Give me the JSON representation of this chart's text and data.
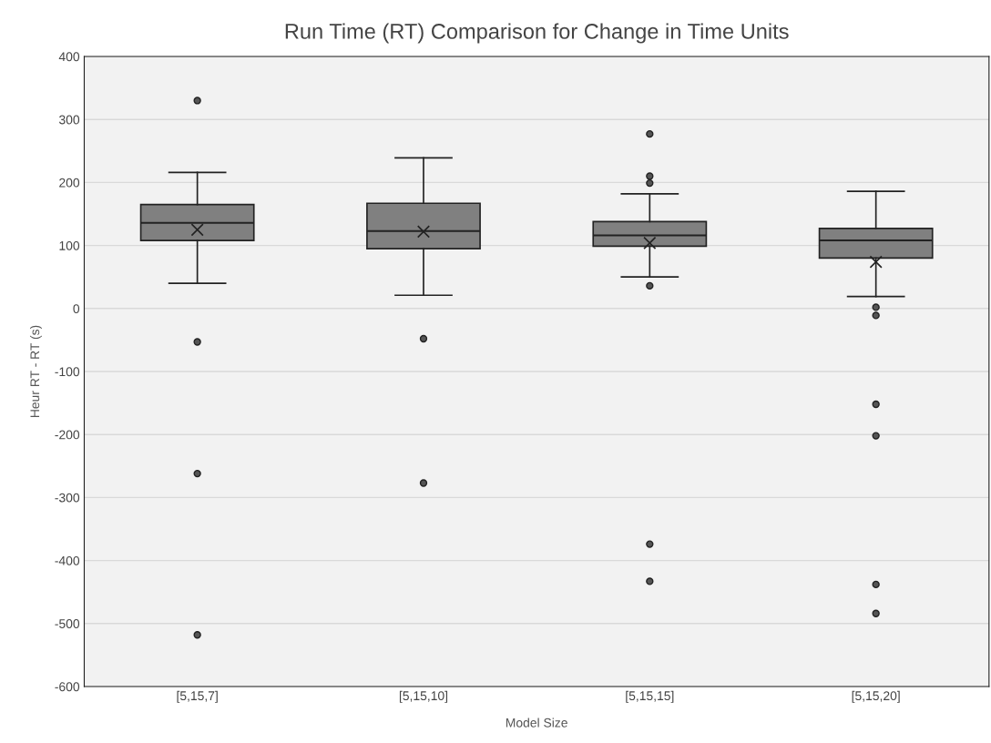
{
  "chart_data": {
    "type": "box",
    "title": "Run Time (RT) Comparison for Change in Time Units",
    "xlabel": "Model Size",
    "ylabel": "Heur RT - RT (s)",
    "categories": [
      "[5,15,7]",
      "[5,15,10]",
      "[5,15,15]",
      "[5,15,20]"
    ],
    "series": [
      {
        "color": "#808080",
        "boxes": [
          {
            "low": 40,
            "q1": 108,
            "median": 136,
            "q3": 165,
            "high": 216,
            "mean": 125,
            "outliers": [
              330,
              -53,
              -262,
              -518
            ]
          },
          {
            "low": 21,
            "q1": 95,
            "median": 123,
            "q3": 167,
            "high": 239,
            "mean": 122,
            "outliers": [
              -48,
              -277
            ]
          },
          {
            "low": 50,
            "q1": 99,
            "median": 116,
            "q3": 138,
            "high": 182,
            "mean": 104,
            "outliers": [
              277,
              210,
              199,
              36,
              -374,
              -433
            ]
          },
          {
            "low": 19,
            "q1": 80,
            "median": 108,
            "q3": 127,
            "high": 186,
            "mean": 74,
            "outliers": [
              2,
              -11,
              -152,
              -202,
              -438,
              -484
            ]
          }
        ]
      }
    ],
    "ylim": [
      -600,
      400
    ],
    "yticks": [
      -600,
      -500,
      -400,
      -300,
      -200,
      -100,
      0,
      100,
      200,
      300,
      400
    ],
    "grid": "y"
  }
}
